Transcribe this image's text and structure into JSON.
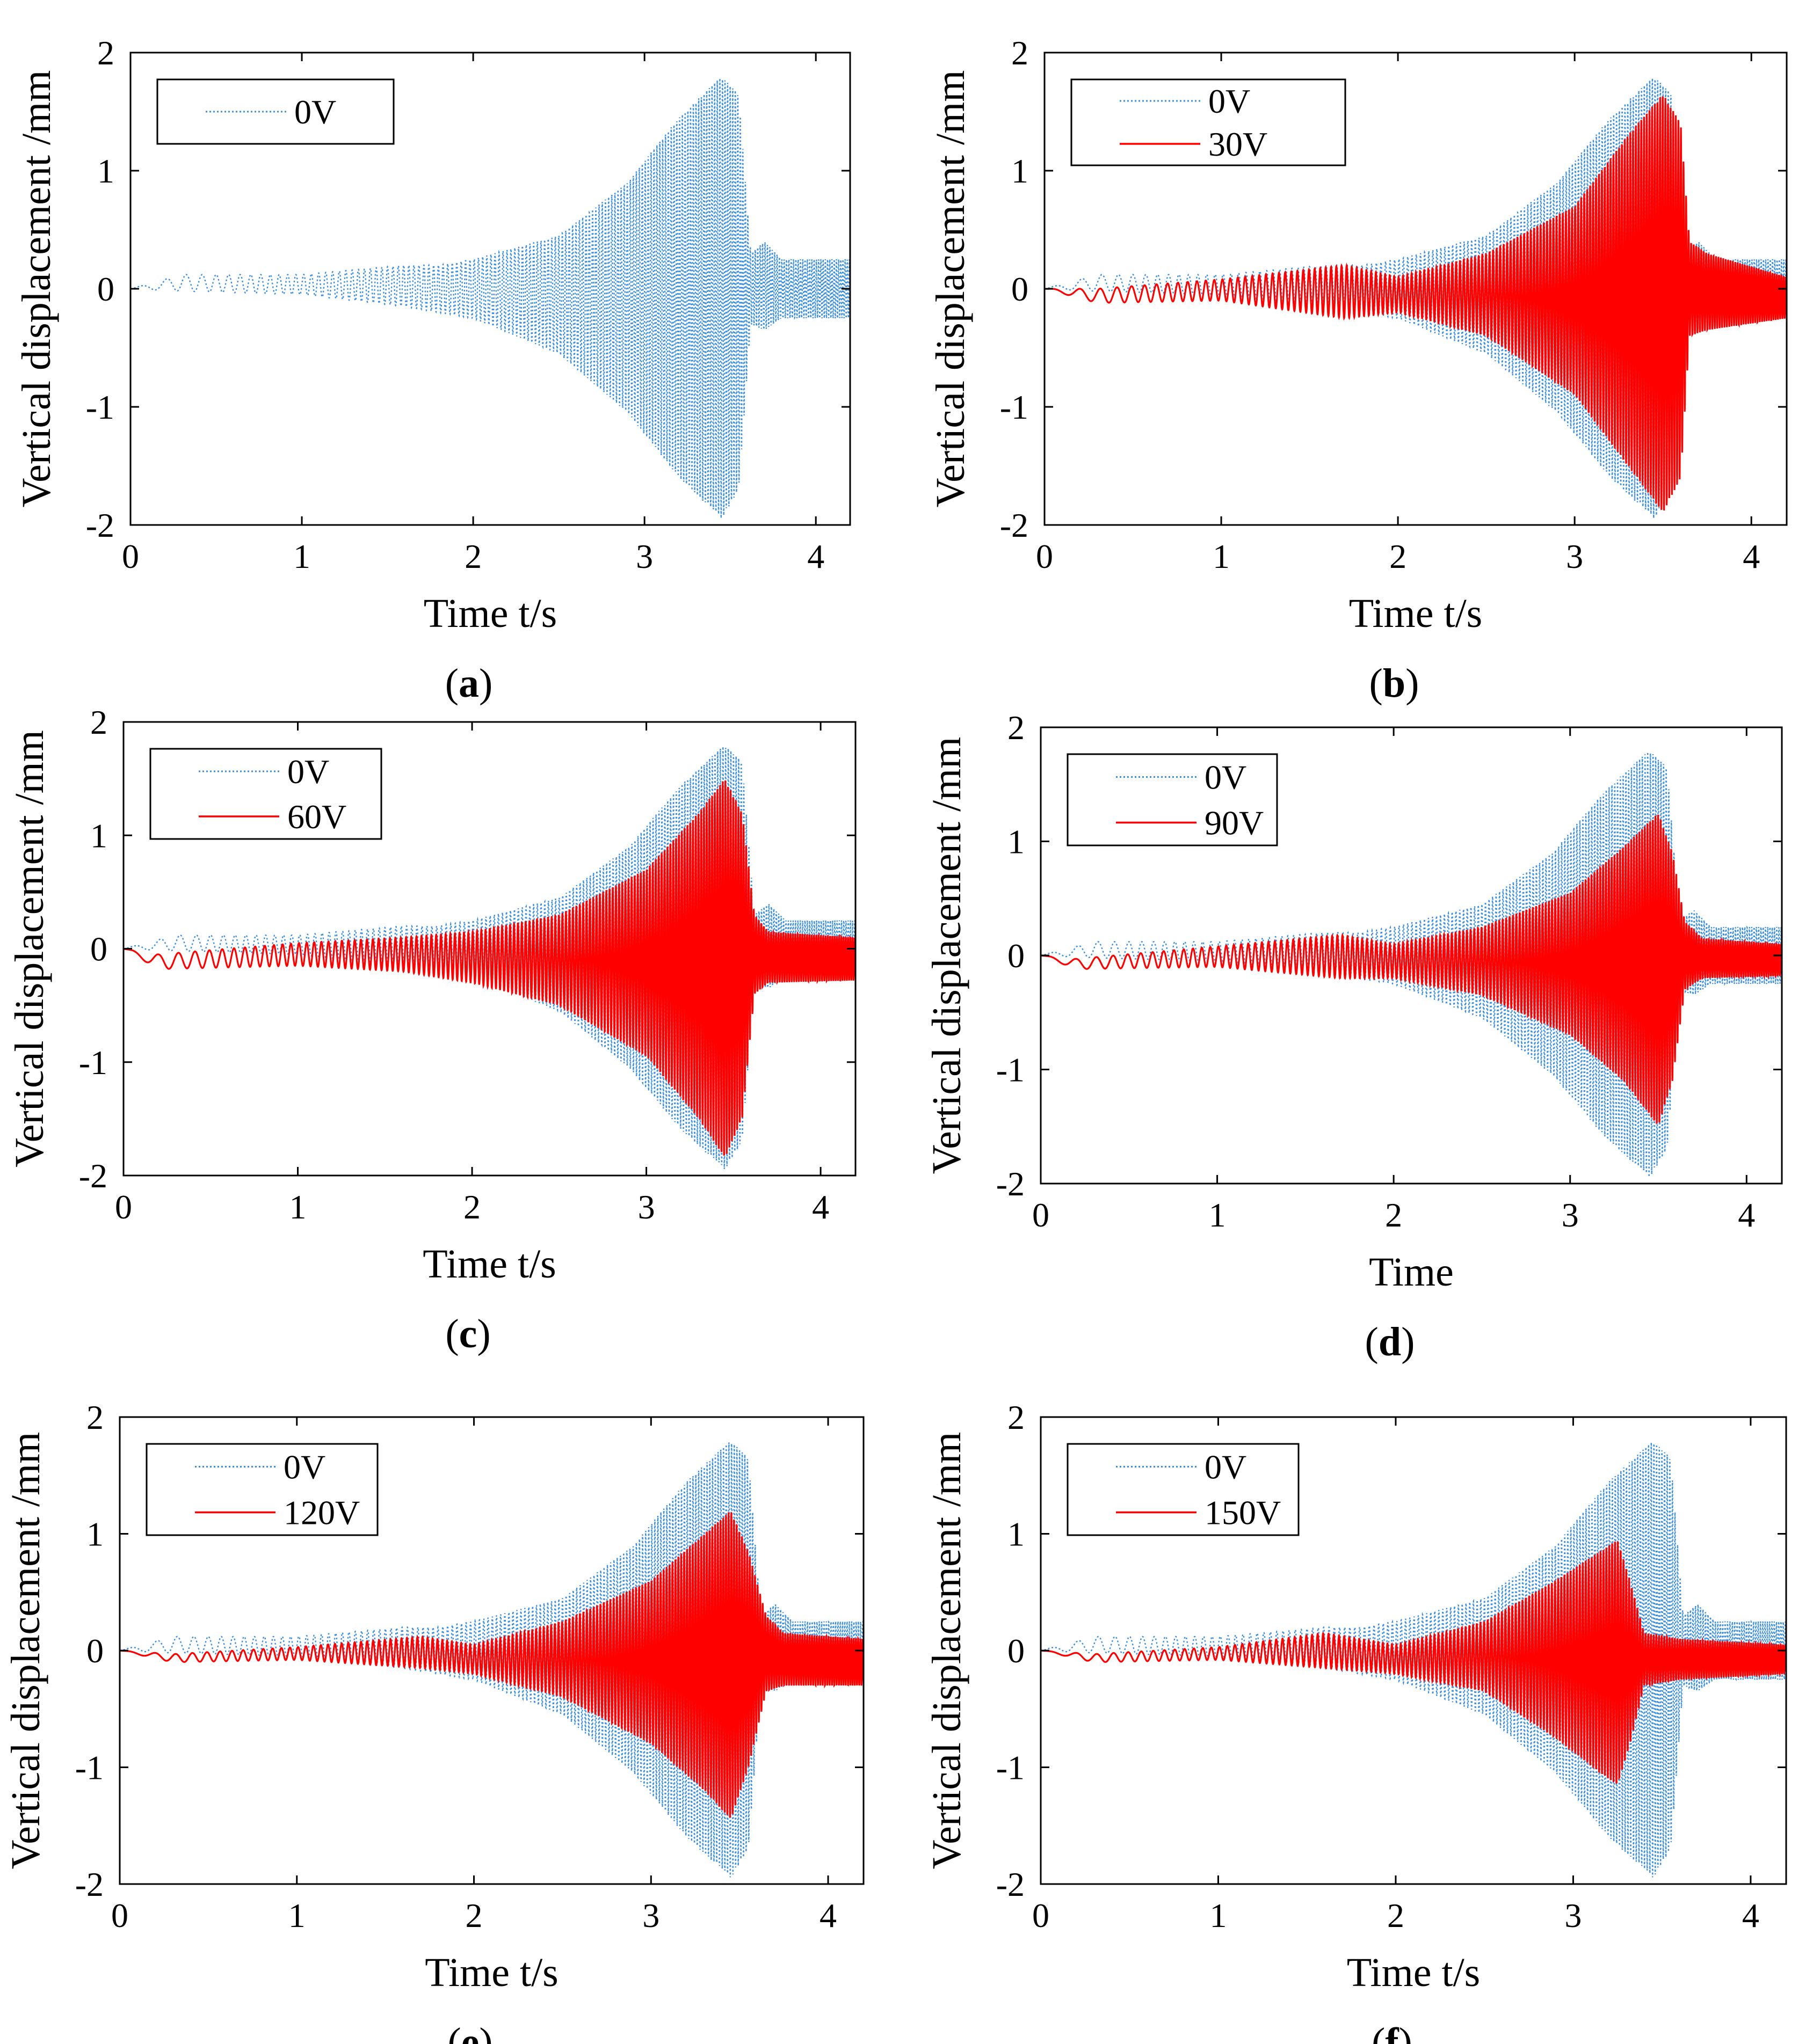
{
  "figure": {
    "colors": {
      "series_0v": "#3a8fde",
      "series_voltage": "#ff0000",
      "axes": "#000000"
    }
  },
  "chart_data": [
    {
      "type": "line",
      "panel_label": "a",
      "xlabel": "Time t/s",
      "ylabel": "Vertical displacement /mm",
      "xlim": [
        0,
        4.2
      ],
      "ylim": [
        -2,
        2
      ],
      "xticks": [
        "0",
        "1",
        "2",
        "3",
        "4"
      ],
      "yticks": [
        "-2",
        "-1",
        "0",
        "1",
        "2"
      ],
      "legend_position": "top-left",
      "series": [
        {
          "name": "0V",
          "style": "dotted",
          "color": "#3a8fde",
          "envelope": {
            "t": [
              0,
              0.3,
              1.0,
              1.6,
              1.8,
              2.0,
              2.5,
              2.9,
              3.2,
              3.45,
              3.55,
              3.62,
              3.7,
              3.8,
              4.2
            ],
            "upper": [
              0,
              0.12,
              0.12,
              0.2,
              0.2,
              0.25,
              0.45,
              0.9,
              1.45,
              1.8,
              1.65,
              0.3,
              0.4,
              0.25,
              0.25
            ],
            "lower": [
              0,
              -0.02,
              -0.05,
              -0.15,
              -0.2,
              -0.25,
              -0.55,
              -1.05,
              -1.6,
              -1.95,
              -1.7,
              -0.3,
              -0.35,
              -0.25,
              -0.25
            ]
          }
        }
      ]
    },
    {
      "type": "line",
      "panel_label": "b",
      "xlabel": "Time t/s",
      "ylabel": "Vertical displacement /mm",
      "xlim": [
        0,
        4.2
      ],
      "ylim": [
        -2,
        2
      ],
      "xticks": [
        "0",
        "1",
        "2",
        "3",
        "4"
      ],
      "yticks": [
        "-2",
        "-1",
        "0",
        "1",
        "2"
      ],
      "legend_position": "top-left",
      "series": [
        {
          "name": "0V",
          "style": "dotted",
          "color": "#3a8fde",
          "envelope": {
            "t": [
              0,
              0.3,
              1.0,
              1.6,
              1.8,
              2.0,
              2.5,
              2.9,
              3.2,
              3.45,
              3.55,
              3.62,
              3.7,
              3.8,
              4.2
            ],
            "upper": [
              0,
              0.12,
              0.12,
              0.2,
              0.2,
              0.25,
              0.45,
              0.9,
              1.45,
              1.8,
              1.65,
              0.3,
              0.4,
              0.25,
              0.25
            ],
            "lower": [
              0,
              -0.02,
              -0.05,
              -0.15,
              -0.2,
              -0.25,
              -0.55,
              -1.05,
              -1.6,
              -1.95,
              -1.7,
              -0.3,
              -0.35,
              -0.25,
              -0.25
            ]
          }
        },
        {
          "name": "30V",
          "style": "solid",
          "color": "#ff0000",
          "envelope": {
            "t": [
              0,
              0.3,
              1.0,
              1.7,
              2.0,
              2.5,
              3.0,
              3.3,
              3.5,
              3.6,
              3.65,
              3.75,
              4.2
            ],
            "upper": [
              0,
              0.0,
              0.08,
              0.2,
              0.1,
              0.3,
              0.7,
              1.3,
              1.65,
              1.4,
              0.4,
              0.3,
              0.1
            ],
            "lower": [
              0,
              -0.12,
              -0.1,
              -0.25,
              -0.2,
              -0.4,
              -0.9,
              -1.5,
              -1.9,
              -1.6,
              -0.4,
              -0.35,
              -0.25
            ]
          }
        }
      ]
    },
    {
      "type": "line",
      "panel_label": "c",
      "xlabel": "Time t/s",
      "ylabel": "Vertical displacement /mm",
      "xlim": [
        0,
        4.2
      ],
      "ylim": [
        -2,
        2
      ],
      "xticks": [
        "0",
        "1",
        "2",
        "3",
        "4"
      ],
      "yticks": [
        "-2",
        "-1",
        "0",
        "1",
        "2"
      ],
      "legend_position": "top-left",
      "series": [
        {
          "name": "0V",
          "style": "dotted",
          "color": "#3a8fde",
          "envelope": {
            "t": [
              0,
              0.3,
              1.0,
              1.6,
              1.8,
              2.0,
              2.5,
              2.9,
              3.2,
              3.45,
              3.55,
              3.62,
              3.7,
              3.8,
              4.2
            ],
            "upper": [
              0,
              0.12,
              0.12,
              0.2,
              0.2,
              0.25,
              0.45,
              0.9,
              1.45,
              1.8,
              1.65,
              0.3,
              0.4,
              0.25,
              0.25
            ],
            "lower": [
              0,
              -0.02,
              -0.05,
              -0.15,
              -0.2,
              -0.25,
              -0.55,
              -1.05,
              -1.6,
              -1.95,
              -1.7,
              -0.3,
              -0.35,
              -0.25,
              -0.25
            ]
          }
        },
        {
          "name": "60V",
          "style": "solid",
          "color": "#ff0000",
          "envelope": {
            "t": [
              0,
              0.2,
              1.0,
              1.6,
              2.0,
              2.5,
              3.0,
              3.3,
              3.45,
              3.55,
              3.62,
              3.7,
              4.2
            ],
            "upper": [
              0,
              -0.05,
              0.05,
              0.1,
              0.15,
              0.3,
              0.7,
              1.2,
              1.5,
              1.2,
              0.3,
              0.15,
              0.1
            ],
            "lower": [
              0,
              -0.18,
              -0.15,
              -0.2,
              -0.3,
              -0.5,
              -0.95,
              -1.5,
              -1.85,
              -1.5,
              -0.4,
              -0.3,
              -0.28
            ]
          }
        }
      ]
    },
    {
      "type": "line",
      "panel_label": "d",
      "xlabel": "Time",
      "ylabel": "Vertical displacement /mm",
      "xlim": [
        0,
        4.2
      ],
      "ylim": [
        -2,
        2
      ],
      "xticks": [
        "0",
        "1",
        "2",
        "3",
        "4"
      ],
      "yticks": [
        "-2",
        "-1",
        "0",
        "1",
        "2"
      ],
      "legend_position": "top-left",
      "series": [
        {
          "name": "0V",
          "style": "dotted",
          "color": "#3a8fde",
          "envelope": {
            "t": [
              0,
              0.3,
              1.0,
              1.6,
              1.8,
              2.0,
              2.5,
              2.9,
              3.2,
              3.45,
              3.55,
              3.62,
              3.7,
              3.8,
              4.2
            ],
            "upper": [
              0,
              0.12,
              0.12,
              0.2,
              0.2,
              0.25,
              0.45,
              0.9,
              1.45,
              1.8,
              1.65,
              0.3,
              0.4,
              0.25,
              0.25
            ],
            "lower": [
              0,
              -0.02,
              -0.05,
              -0.15,
              -0.2,
              -0.25,
              -0.55,
              -1.05,
              -1.6,
              -1.95,
              -1.7,
              -0.3,
              -0.35,
              -0.25,
              -0.25
            ]
          }
        },
        {
          "name": "90V",
          "style": "solid",
          "color": "#ff0000",
          "envelope": {
            "t": [
              0,
              0.2,
              1.0,
              1.7,
              2.0,
              2.5,
              3.0,
              3.3,
              3.5,
              3.58,
              3.65,
              3.75,
              4.2
            ],
            "upper": [
              0,
              -0.03,
              0.08,
              0.18,
              0.1,
              0.25,
              0.55,
              0.95,
              1.25,
              0.9,
              0.3,
              0.15,
              0.1
            ],
            "lower": [
              0,
              -0.12,
              -0.1,
              -0.2,
              -0.2,
              -0.35,
              -0.7,
              -1.1,
              -1.5,
              -1.1,
              -0.3,
              -0.2,
              -0.18
            ]
          }
        }
      ]
    },
    {
      "type": "line",
      "panel_label": "e",
      "xlabel": "Time t/s",
      "ylabel": "Vertical displacement /mm",
      "xlim": [
        0,
        4.2
      ],
      "ylim": [
        -2,
        2
      ],
      "xticks": [
        "0",
        "1",
        "2",
        "3",
        "4"
      ],
      "yticks": [
        "-2",
        "-1",
        "0",
        "1",
        "2"
      ],
      "legend_position": "top-left",
      "series": [
        {
          "name": "0V",
          "style": "dotted",
          "color": "#3a8fde",
          "envelope": {
            "t": [
              0,
              0.3,
              1.0,
              1.6,
              1.8,
              2.0,
              2.5,
              2.9,
              3.2,
              3.45,
              3.55,
              3.62,
              3.7,
              3.8,
              4.2
            ],
            "upper": [
              0,
              0.12,
              0.12,
              0.2,
              0.2,
              0.25,
              0.45,
              0.9,
              1.45,
              1.8,
              1.65,
              0.3,
              0.4,
              0.25,
              0.25
            ],
            "lower": [
              0,
              -0.02,
              -0.05,
              -0.15,
              -0.2,
              -0.25,
              -0.55,
              -1.05,
              -1.6,
              -1.95,
              -1.7,
              -0.3,
              -0.35,
              -0.25,
              -0.25
            ]
          }
        },
        {
          "name": "120V",
          "style": "solid",
          "color": "#ff0000",
          "envelope": {
            "t": [
              0,
              0.3,
              1.0,
              1.7,
              2.0,
              2.5,
              3.0,
              3.3,
              3.45,
              3.55,
              3.65,
              3.75,
              4.2
            ],
            "upper": [
              0,
              -0.03,
              0.03,
              0.12,
              0.05,
              0.25,
              0.6,
              1.0,
              1.2,
              0.85,
              0.3,
              0.15,
              0.1
            ],
            "lower": [
              0,
              -0.1,
              -0.08,
              -0.15,
              -0.2,
              -0.4,
              -0.8,
              -1.2,
              -1.45,
              -1.0,
              -0.35,
              -0.3,
              -0.3
            ]
          }
        }
      ]
    },
    {
      "type": "line",
      "panel_label": "f",
      "xlabel": "Time t/s",
      "ylabel": "Vertical displacement /mm",
      "xlim": [
        0,
        4.2
      ],
      "ylim": [
        -2,
        2
      ],
      "xticks": [
        "0",
        "1",
        "2",
        "3",
        "4"
      ],
      "yticks": [
        "-2",
        "-1",
        "0",
        "1",
        "2"
      ],
      "legend_position": "top-left",
      "series": [
        {
          "name": "0V",
          "style": "dotted",
          "color": "#3a8fde",
          "envelope": {
            "t": [
              0,
              0.3,
              1.0,
              1.6,
              1.8,
              2.0,
              2.5,
              2.9,
              3.2,
              3.45,
              3.55,
              3.62,
              3.7,
              3.8,
              4.2
            ],
            "upper": [
              0,
              0.12,
              0.12,
              0.2,
              0.2,
              0.25,
              0.45,
              0.9,
              1.45,
              1.8,
              1.65,
              0.3,
              0.4,
              0.25,
              0.25
            ],
            "lower": [
              0,
              -0.02,
              -0.05,
              -0.15,
              -0.2,
              -0.25,
              -0.55,
              -1.05,
              -1.6,
              -1.95,
              -1.7,
              -0.3,
              -0.35,
              -0.25,
              -0.25
            ]
          }
        },
        {
          "name": "150V",
          "style": "solid",
          "color": "#ff0000",
          "envelope": {
            "t": [
              0,
              0.3,
              1.0,
              1.6,
              2.0,
              2.5,
              2.9,
              3.15,
              3.25,
              3.32,
              3.4,
              3.6,
              4.2
            ],
            "upper": [
              0,
              -0.03,
              0.03,
              0.15,
              0.05,
              0.25,
              0.6,
              0.85,
              0.95,
              0.6,
              0.15,
              0.1,
              0.05
            ],
            "lower": [
              0,
              -0.1,
              -0.08,
              -0.15,
              -0.2,
              -0.35,
              -0.75,
              -1.05,
              -1.15,
              -0.8,
              -0.3,
              -0.25,
              -0.2
            ]
          }
        }
      ]
    }
  ]
}
